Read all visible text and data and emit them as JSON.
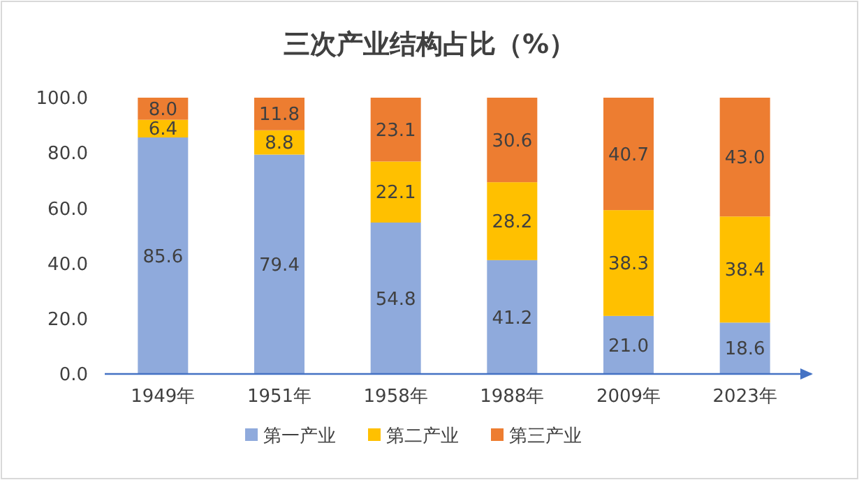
{
  "chart_data": {
    "type": "bar",
    "stacked": true,
    "title": "三次产业结构占比（%）",
    "categories": [
      "1949年",
      "1951年",
      "1958年",
      "1988年",
      "2009年",
      "2023年"
    ],
    "series": [
      {
        "name": "第一产业",
        "color": "#8faadc",
        "values": [
          85.6,
          79.4,
          54.8,
          41.2,
          21.0,
          18.6
        ],
        "value_labels": [
          "85.6",
          "79.4",
          "54.8",
          "41.2",
          "21.0",
          "18.6"
        ]
      },
      {
        "name": "第二产业",
        "color": "#ffc000",
        "values": [
          6.4,
          8.8,
          22.1,
          28.2,
          38.3,
          38.4
        ],
        "value_labels": [
          "6.4",
          "8.8",
          "22.1",
          "28.2",
          "38.3",
          "38.4"
        ]
      },
      {
        "name": "第三产业",
        "color": "#ed7d31",
        "values": [
          8.0,
          11.8,
          23.1,
          30.6,
          40.7,
          43.0
        ],
        "value_labels": [
          "8.0",
          "11.8",
          "23.1",
          "30.6",
          "40.7",
          "43.0"
        ]
      }
    ],
    "ylim": [
      0,
      100
    ],
    "yticks": [
      {
        "value": 0,
        "label": "0.0"
      },
      {
        "value": 20,
        "label": "20.0"
      },
      {
        "value": 40,
        "label": "40.0"
      },
      {
        "value": 60,
        "label": "60.0"
      },
      {
        "value": 80,
        "label": "80.0"
      },
      {
        "value": 100,
        "label": "100.0"
      }
    ],
    "grid": false,
    "legend": "bottom"
  }
}
